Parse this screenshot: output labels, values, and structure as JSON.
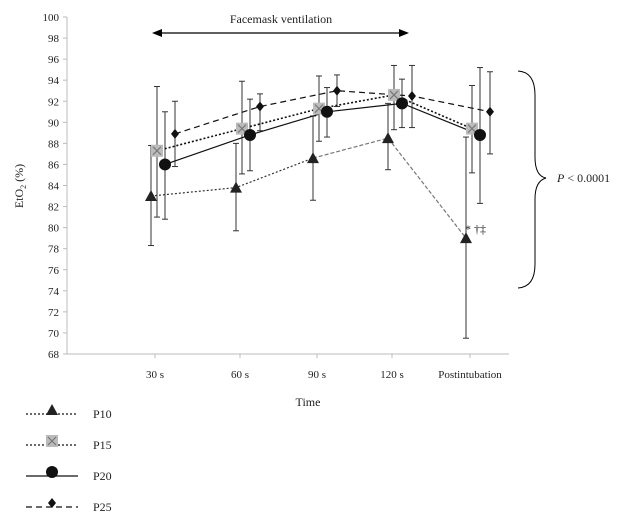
{
  "chart_data": {
    "type": "line",
    "title": "",
    "xlabel": "Time",
    "ylabel": "EtO2 (%)",
    "ylim": [
      68,
      100
    ],
    "ytick_step": 2,
    "categories": [
      "30 s",
      "60 s",
      "90 s",
      "120 s",
      "Postintubation"
    ],
    "series": [
      {
        "name": "P10",
        "marker": "triangle",
        "line_style": "dotted-then-dashed",
        "values": [
          83.0,
          83.8,
          86.6,
          88.5,
          79.0
        ],
        "error_low": [
          78.3,
          79.7,
          82.6,
          85.5,
          69.5
        ],
        "error_high": [
          87.8,
          88.0,
          90.6,
          91.8,
          88.6
        ]
      },
      {
        "name": "P15",
        "marker": "x-square",
        "line_style": "dotted",
        "values": [
          87.3,
          89.4,
          91.3,
          92.6,
          89.4
        ],
        "error_low": [
          81.0,
          85.1,
          88.2,
          89.3,
          85.2
        ],
        "error_high": [
          93.4,
          93.9,
          94.4,
          95.4,
          93.5
        ]
      },
      {
        "name": "P20",
        "marker": "circle",
        "line_style": "solid",
        "values": [
          86.0,
          88.8,
          91.0,
          91.8,
          88.8
        ],
        "error_low": [
          80.8,
          85.4,
          88.6,
          89.5,
          82.3
        ],
        "error_high": [
          91.0,
          92.2,
          93.3,
          94.1,
          95.2
        ]
      },
      {
        "name": "P25",
        "marker": "diamond",
        "line_style": "dashed",
        "values": [
          88.9,
          91.5,
          93.0,
          92.5,
          91.0
        ],
        "error_low": [
          85.8,
          89.2,
          91.5,
          89.5,
          87.0
        ],
        "error_high": [
          92.0,
          92.7,
          94.5,
          95.4,
          94.8
        ]
      }
    ],
    "annotations": {
      "ventilation_label": "Facemask ventilation",
      "significance_mark": "* †‡",
      "p_value_italic": "P",
      "p_value_rest": " < 0.0001"
    }
  },
  "legend_labels": [
    "P10",
    "P15",
    "P20",
    "P25"
  ]
}
